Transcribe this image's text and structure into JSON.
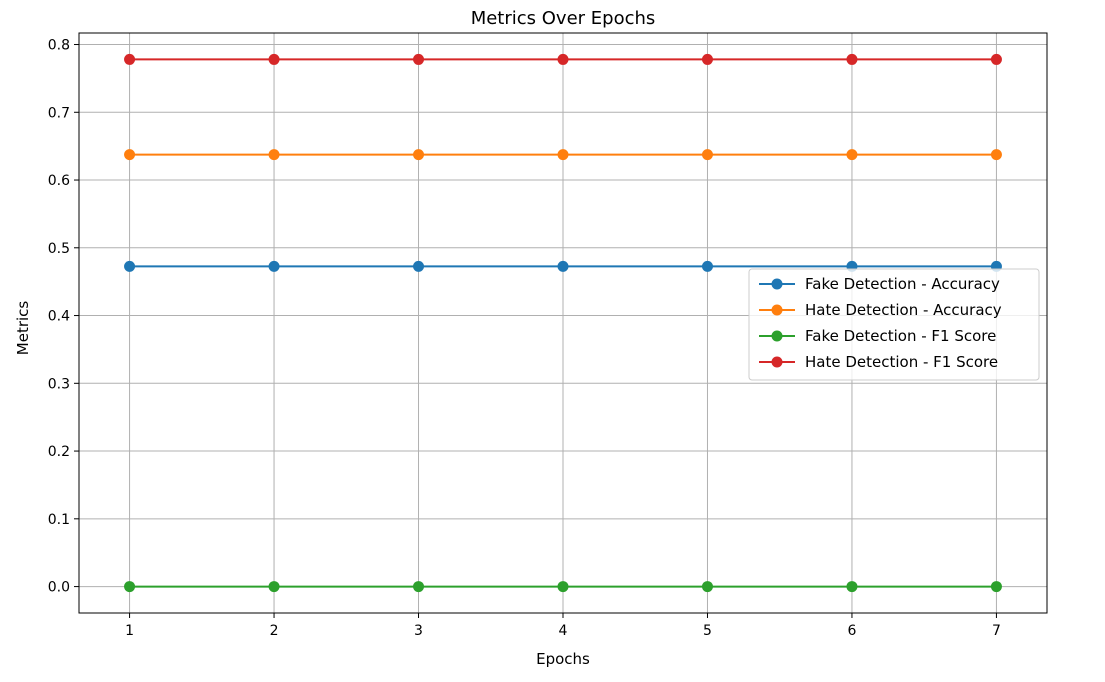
{
  "chart_data": {
    "type": "line",
    "title": "Metrics Over Epochs",
    "xlabel": "Epochs",
    "ylabel": "Metrics",
    "x": [
      1,
      2,
      3,
      4,
      5,
      6,
      7
    ],
    "xticks": [
      1,
      2,
      3,
      4,
      5,
      6,
      7
    ],
    "yticks": [
      0.0,
      0.1,
      0.2,
      0.3,
      0.4,
      0.5,
      0.6,
      0.7,
      0.8
    ],
    "xlim": [
      0.65,
      7.35
    ],
    "ylim": [
      -0.039,
      0.817
    ],
    "grid": true,
    "legend_position": "center-right",
    "series": [
      {
        "name": "Fake Detection - Accuracy",
        "color": "#1f77b4",
        "values": [
          0.4725,
          0.4725,
          0.4725,
          0.4725,
          0.4725,
          0.4725,
          0.4725
        ]
      },
      {
        "name": "Hate Detection - Accuracy",
        "color": "#ff7f0e",
        "values": [
          0.6375,
          0.6375,
          0.6375,
          0.6375,
          0.6375,
          0.6375,
          0.6375
        ]
      },
      {
        "name": "Fake Detection - F1 Score",
        "color": "#2ca02c",
        "values": [
          0.0,
          0.0,
          0.0,
          0.0,
          0.0,
          0.0,
          0.0
        ]
      },
      {
        "name": "Hate Detection - F1 Score",
        "color": "#d62728",
        "values": [
          0.778,
          0.778,
          0.778,
          0.778,
          0.778,
          0.778,
          0.778
        ]
      }
    ]
  }
}
